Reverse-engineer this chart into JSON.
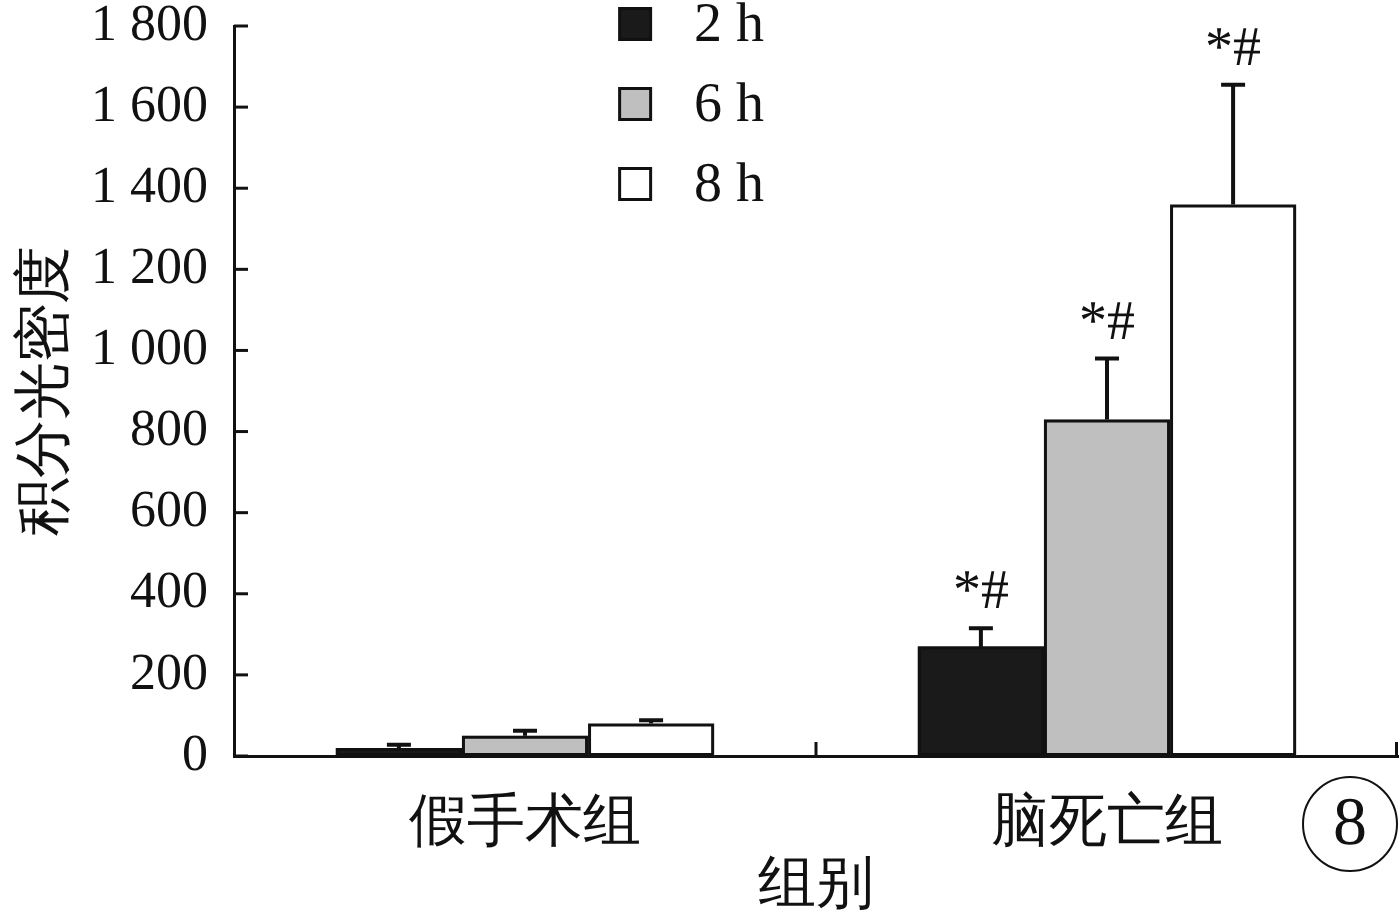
{
  "chart_data": {
    "type": "bar",
    "xlabel": "组别",
    "ylabel": "积分光密度",
    "categories": [
      "假手术组",
      "脑死亡组"
    ],
    "series": [
      {
        "name": "2 h",
        "color": "#1a1a1a",
        "values": [
          20,
          270
        ],
        "errors": [
          8,
          45
        ]
      },
      {
        "name": "6 h",
        "color": "#bfbfbf",
        "values": [
          50,
          830
        ],
        "errors": [
          12,
          150
        ]
      },
      {
        "name": "8 h",
        "color": "#ffffff",
        "values": [
          80,
          1360
        ],
        "errors": [
          8,
          295
        ]
      }
    ],
    "ylim": [
      0,
      1800
    ],
    "yticks": [
      0,
      200,
      400,
      600,
      800,
      {
        "value": 1000,
        "label": "1 000"
      },
      {
        "value": 1200,
        "label": "1 200"
      },
      {
        "value": 1400,
        "label": "1 400"
      },
      {
        "value": 1600,
        "label": "1 600"
      },
      {
        "value": 1800,
        "label": "1 800"
      }
    ],
    "legend": "top",
    "annotations": [
      "*#",
      "*#",
      "*#",
      "8"
    ]
  }
}
